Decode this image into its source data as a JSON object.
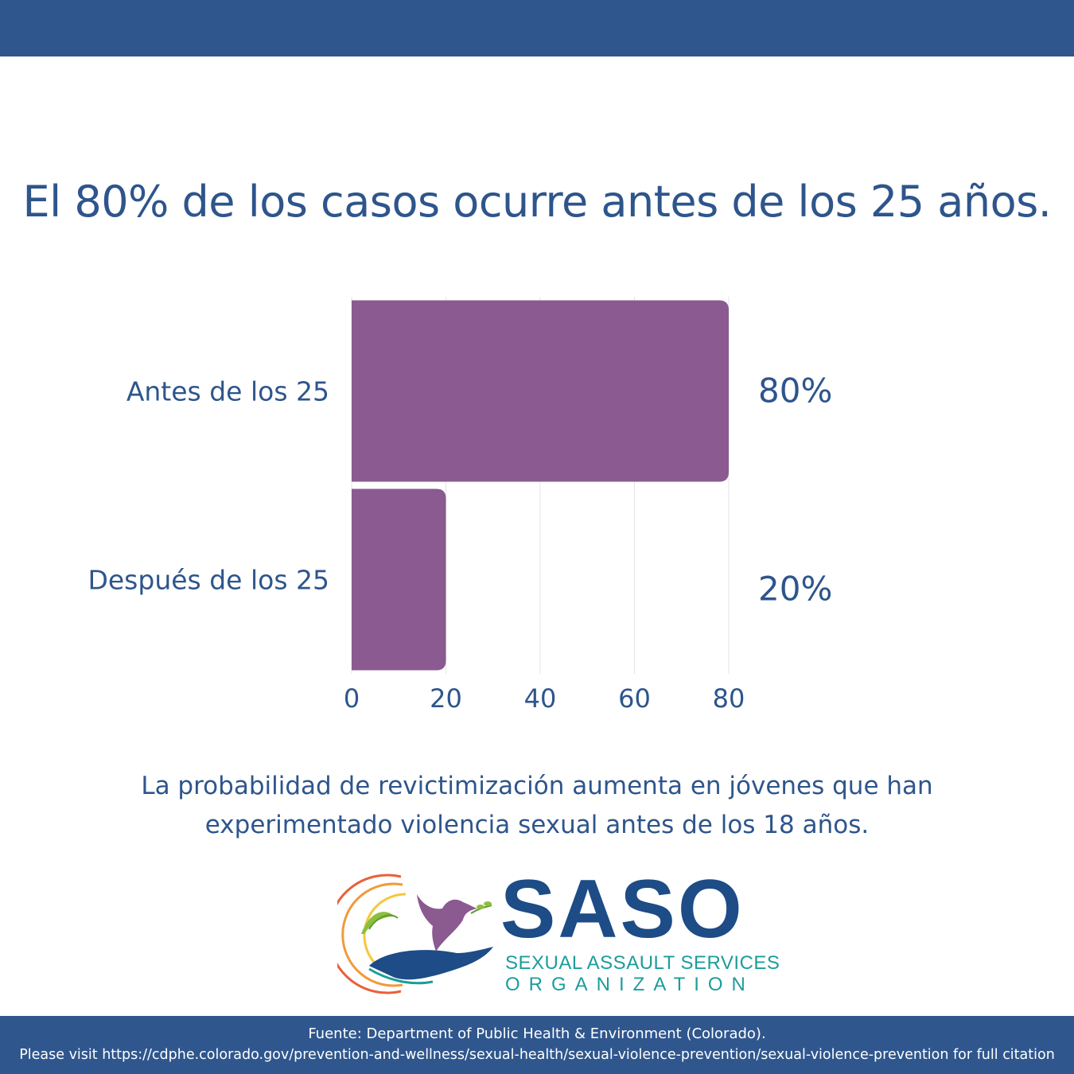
{
  "title": "El 80% de los casos ocurre antes de los 25 años.",
  "chart_data": {
    "type": "bar",
    "orientation": "horizontal",
    "categories": [
      "Antes de los 25",
      "Después de los 25"
    ],
    "values": [
      80,
      20
    ],
    "value_labels": [
      "80%",
      "20%"
    ],
    "xlim": [
      0,
      80
    ],
    "xticks": [
      0,
      20,
      40,
      60,
      80
    ],
    "grid": true,
    "bar_color": "#8a5a90"
  },
  "note": "La probabilidad de revictimización aumenta en jóvenes que han experimentado violencia sexual antes de los 18 años.",
  "logo": {
    "wordmark": "SASO",
    "line1": "SEXUAL ASSAULT SERVICES",
    "line2": "ORGANIZATION"
  },
  "footer": {
    "source": "Fuente: Department of Public Health & Environment (Colorado).",
    "citation": "Please visit https://cdphe.colorado.gov/prevention-and-wellness/sexual-health/sexual-violence-prevention/sexual-violence-prevention for full citation"
  },
  "colors": {
    "band": "#2f578e",
    "text": "#2e558c",
    "bar": "#8a5a90",
    "logo_blue": "#1d4c86",
    "logo_teal": "#1c9c9c"
  }
}
